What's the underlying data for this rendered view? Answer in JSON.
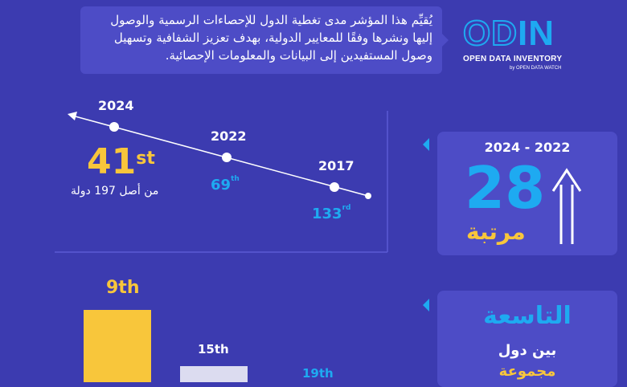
{
  "description": "يُقيِّم هذا المؤشر مدى تغطية الدول للإحصاءات الرسمية والوصول إليها ونشرها وفقًا للمعايير الدولية، بهدف تعزيز الشفافية وتسهيل وصول المستفيدين إلى البيانات والمعلومات الإحصائية.",
  "logo": {
    "main": "ODIN",
    "sub": "OPEN DATA INVENTORY",
    "by": "by OPEN DATA WATCH"
  },
  "timeline": {
    "points": [
      {
        "year": "2024",
        "rank": "41",
        "suffix": "st",
        "note": "من أصل 197 دولة"
      },
      {
        "year": "2022",
        "rank": "69",
        "suffix": "th"
      },
      {
        "year": "2017",
        "rank": "133",
        "suffix": "rd"
      }
    ]
  },
  "improvement": {
    "period": "2024 - 2022",
    "value": "28",
    "unit": "مرتبة"
  },
  "bottom": {
    "title": "التاسعة",
    "line1": "بين دول",
    "line2": "مجموعة",
    "bars": [
      {
        "label": "9th",
        "value": 9,
        "color": "#f8c63b"
      },
      {
        "label": "15th",
        "value": 15,
        "color": "#dcdcf0"
      },
      {
        "label": "19th",
        "value": 19,
        "color": "#1eaaf1"
      }
    ]
  },
  "colors": {
    "background": "#3c3bb0",
    "card": "#4d4cc6",
    "yellow": "#f8c63b",
    "blue": "#1eaaf1"
  }
}
